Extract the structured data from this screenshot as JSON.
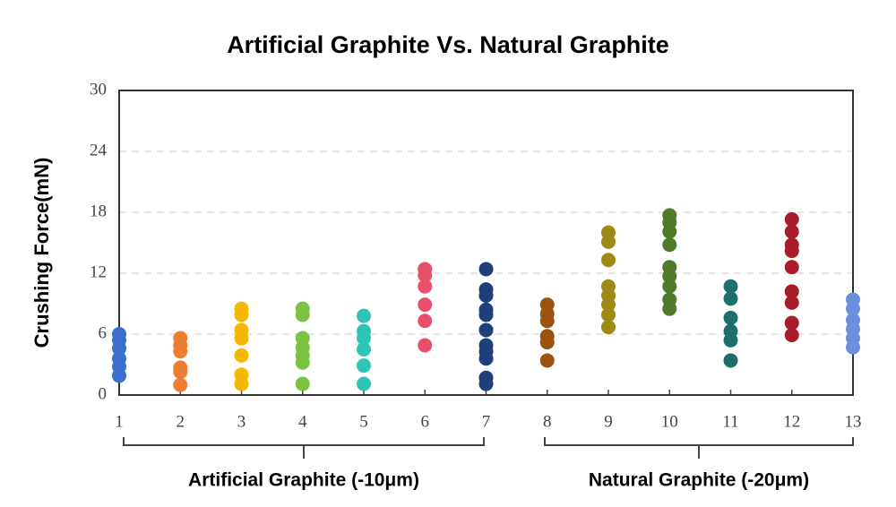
{
  "chart_data": {
    "type": "scatter",
    "title": "Artificial Graphite Vs. Natural Graphite",
    "y_label": "Crushing Force(mN)",
    "groups": [
      {
        "label": "Artificial Graphite (-10μm)"
      },
      {
        "label": "Natural Graphite (-20μm)"
      }
    ],
    "xlim": [
      1,
      13
    ],
    "xticks": [
      1,
      2,
      3,
      4,
      5,
      6,
      7,
      8,
      9,
      10,
      11,
      12,
      13
    ],
    "ylim": [
      0,
      30
    ],
    "yticks": [
      0,
      6,
      12,
      18,
      24,
      30
    ],
    "grid": true,
    "series": [
      {
        "color": "#3a6fd0",
        "x": [
          1,
          1,
          1,
          1,
          1,
          1
        ],
        "values": [
          6,
          5.4,
          4.6,
          3.6,
          2.8,
          1.9
        ]
      },
      {
        "color": "#ed7d31",
        "x": [
          2,
          2,
          2,
          2,
          2,
          2
        ],
        "values": [
          5.6,
          4.9,
          4.3,
          2.7,
          2.3,
          1.0
        ]
      },
      {
        "color": "#f5b800",
        "x": [
          3,
          3,
          3,
          3,
          3,
          3,
          3
        ],
        "values": [
          8.5,
          7.9,
          6.4,
          5.6,
          3.9,
          2.0,
          1.1
        ]
      },
      {
        "color": "#7cc142",
        "x": [
          4,
          4,
          4,
          4,
          4,
          4,
          4
        ],
        "values": [
          8.5,
          7.9,
          5.6,
          4.7,
          3.9,
          3.2,
          1.1
        ]
      },
      {
        "color": "#2ec4b6",
        "x": [
          5,
          5,
          5,
          5,
          5,
          5
        ],
        "values": [
          7.8,
          6.3,
          5.6,
          4.5,
          2.9,
          1.1
        ]
      },
      {
        "color": "#e8506a",
        "x": [
          6,
          6,
          6,
          6,
          6,
          6
        ],
        "values": [
          12.4,
          11.8,
          10.7,
          8.9,
          7.3,
          4.9
        ]
      },
      {
        "color": "#1f3f7a",
        "x": [
          7,
          7,
          7,
          7,
          7,
          7,
          7,
          7,
          7,
          7,
          7
        ],
        "values": [
          12.4,
          10.4,
          9.8,
          8.4,
          7.9,
          6.4,
          4.9,
          4.3,
          3.6,
          1.7,
          1.1
        ]
      },
      {
        "color": "#9c5210",
        "x": [
          8,
          8,
          8,
          8,
          8,
          8
        ],
        "values": [
          8.9,
          8.0,
          7.3,
          5.8,
          5.2,
          3.4
        ]
      },
      {
        "color": "#a08814",
        "x": [
          9,
          9,
          9,
          9,
          9,
          9,
          9,
          9
        ],
        "values": [
          16,
          15.1,
          13.3,
          10.7,
          9.8,
          8.9,
          7.9,
          6.7
        ]
      },
      {
        "color": "#4f7a2a",
        "x": [
          10,
          10,
          10,
          10,
          10,
          10,
          10,
          10,
          10
        ],
        "values": [
          17.7,
          17,
          16.1,
          14.8,
          12.6,
          11.7,
          10.7,
          9.4,
          8.5
        ]
      },
      {
        "color": "#1e6f6a",
        "x": [
          11,
          11,
          11,
          11,
          11,
          11
        ],
        "values": [
          10.7,
          9.5,
          7.6,
          6.3,
          5.4,
          3.4
        ]
      },
      {
        "color": "#a81c2c",
        "x": [
          12,
          12,
          12,
          12,
          12,
          12,
          12,
          12,
          12
        ],
        "values": [
          17.3,
          16.1,
          14.8,
          14.2,
          12.6,
          10.2,
          9.1,
          7.1,
          5.9
        ]
      },
      {
        "color": "#6a8fdc",
        "x": [
          13,
          13,
          13,
          13,
          13,
          13
        ],
        "values": [
          9.4,
          8.5,
          7.4,
          6.5,
          5.6,
          4.7
        ]
      }
    ]
  }
}
